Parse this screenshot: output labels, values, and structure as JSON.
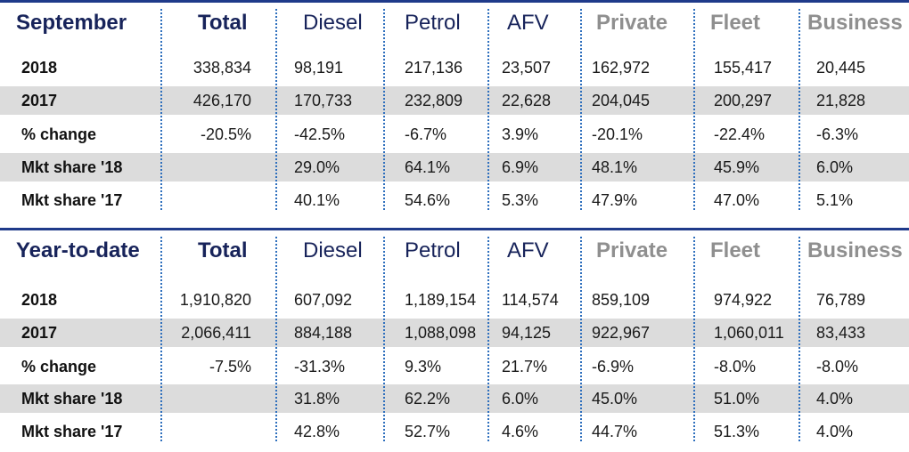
{
  "columns": [
    "Total",
    "Diesel",
    "Petrol",
    "AFV",
    "Private",
    "Fleet",
    "Business"
  ],
  "sections": [
    {
      "title": "September",
      "rows": [
        {
          "label": "2018",
          "values": [
            "338,834",
            "98,191",
            "217,136",
            "23,507",
            "162,972",
            "155,417",
            "20,445"
          ]
        },
        {
          "label": "2017",
          "values": [
            "426,170",
            "170,733",
            "232,809",
            "22,628",
            "204,045",
            "200,297",
            "21,828"
          ]
        },
        {
          "label": "% change",
          "values": [
            "-20.5%",
            "-42.5%",
            "-6.7%",
            "3.9%",
            "-20.1%",
            "-22.4%",
            "-6.3%"
          ]
        },
        {
          "label": "Mkt share '18",
          "values": [
            "",
            "29.0%",
            "64.1%",
            "6.9%",
            "48.1%",
            "45.9%",
            "6.0%"
          ]
        },
        {
          "label": "Mkt share '17",
          "values": [
            "",
            "40.1%",
            "54.6%",
            "5.3%",
            "47.9%",
            "47.0%",
            "5.1%"
          ]
        }
      ]
    },
    {
      "title": "Year-to-date",
      "rows": [
        {
          "label": "2018",
          "values": [
            "1,910,820",
            "607,092",
            "1,189,154",
            "114,574",
            "859,109",
            "974,922",
            "76,789"
          ]
        },
        {
          "label": "2017",
          "values": [
            "2,066,411",
            "884,188",
            "1,088,098",
            "94,125",
            "922,967",
            "1,060,011",
            "83,433"
          ]
        },
        {
          "label": "% change",
          "values": [
            "-7.5%",
            "-31.3%",
            "9.3%",
            "21.7%",
            "-6.9%",
            "-8.0%",
            "-8.0%"
          ]
        },
        {
          "label": "Mkt share '18",
          "values": [
            "",
            "31.8%",
            "62.2%",
            "6.0%",
            "45.0%",
            "51.0%",
            "4.0%"
          ]
        },
        {
          "label": "Mkt share '17",
          "values": [
            "",
            "42.8%",
            "52.7%",
            "4.6%",
            "44.7%",
            "51.3%",
            "4.0%"
          ]
        }
      ]
    }
  ]
}
